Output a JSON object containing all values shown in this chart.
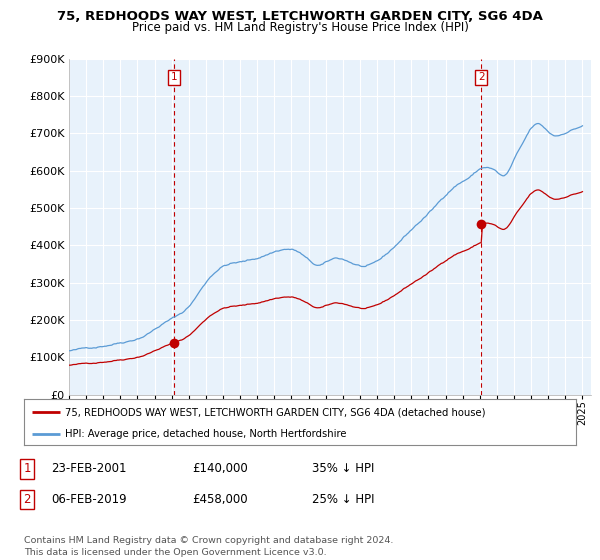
{
  "title": "75, REDHOODS WAY WEST, LETCHWORTH GARDEN CITY, SG6 4DA",
  "subtitle": "Price paid vs. HM Land Registry's House Price Index (HPI)",
  "ylim": [
    0,
    900000
  ],
  "xlim_start": 1995.0,
  "xlim_end": 2025.5,
  "hpi_color": "#5b9bd5",
  "price_color": "#c00000",
  "dashed_color": "#c00000",
  "chart_bg": "#e8f2fb",
  "marker1_year": 2001.12,
  "marker1_price": 140000,
  "marker2_year": 2019.08,
  "marker2_price": 458000,
  "legend_label1": "75, REDHOODS WAY WEST, LETCHWORTH GARDEN CITY, SG6 4DA (detached house)",
  "legend_label2": "HPI: Average price, detached house, North Hertfordshire",
  "table_row1": [
    "1",
    "23-FEB-2001",
    "£140,000",
    "35% ↓ HPI"
  ],
  "table_row2": [
    "2",
    "06-FEB-2019",
    "£458,000",
    "25% ↓ HPI"
  ],
  "footer": "Contains HM Land Registry data © Crown copyright and database right 2024.\nThis data is licensed under the Open Government Licence v3.0.",
  "background_color": "#ffffff",
  "grid_color": "#d0d8e4"
}
